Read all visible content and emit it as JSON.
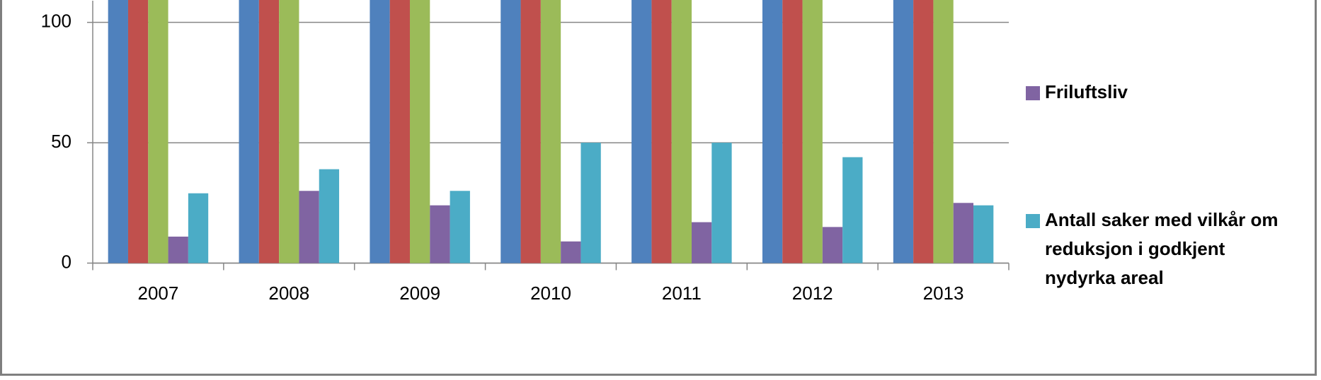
{
  "chart_data": {
    "type": "bar",
    "categories": [
      "2007",
      "2008",
      "2009",
      "2010",
      "2011",
      "2012",
      "2013"
    ],
    "series": [
      {
        "color": "#4f81bd",
        "values": [
          110,
          110,
          110,
          110,
          110,
          110,
          110
        ]
      },
      {
        "color": "#c0504d",
        "values": [
          110,
          110,
          110,
          110,
          110,
          110,
          110
        ]
      },
      {
        "color": "#9bbb59",
        "values": [
          110,
          110,
          110,
          110,
          110,
          110,
          110
        ]
      },
      {
        "name": "Friluftsliv",
        "color": "#8064a2",
        "values": [
          11,
          30,
          24,
          9,
          17,
          15,
          25
        ]
      },
      {
        "name": "Antall saker med vilkår om reduksjon i godkjent nydyrka areal",
        "color": "#4bacc6",
        "values": [
          29,
          39,
          30,
          50,
          50,
          44,
          24
        ]
      }
    ],
    "ylim": [
      0,
      109
    ],
    "yticks": [
      0,
      50,
      100
    ],
    "grid": true,
    "legend": "right"
  }
}
